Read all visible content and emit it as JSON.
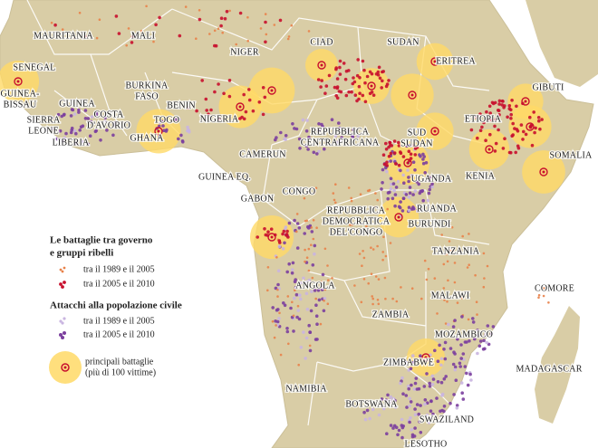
{
  "countries": [
    [
      "MAURITANIA"
    ],
    [
      "MALI"
    ],
    [
      "NIGER"
    ],
    [
      "CIAD"
    ],
    [
      "SUDAN"
    ],
    [
      "ERITREA"
    ],
    [
      "GIBUTI"
    ],
    [
      "SENEGAL"
    ],
    [
      "GUINEA-",
      "BISSAU"
    ],
    [
      "GUINEA"
    ],
    [
      "BURKINA",
      "FASO"
    ],
    [
      "COSTA",
      "D'AVORIO"
    ],
    [
      "BENIN"
    ],
    [
      "TOGO"
    ],
    [
      "SIERRA",
      "LEONE"
    ],
    [
      "LIBERIA"
    ],
    [
      "GHANA"
    ],
    [
      "NIGERIA"
    ],
    [
      "ETIOPIA"
    ],
    [
      "REPUBBLICA",
      "CENTRAFRICANA"
    ],
    [
      "SUD",
      "SUDAN"
    ],
    [
      "SOMALIA"
    ],
    [
      "CAMERUN"
    ],
    [
      "KENIA"
    ],
    [
      "GUINEA EQ."
    ],
    [
      "UGANDA"
    ],
    [
      "GABON"
    ],
    [
      "CONGO"
    ],
    [
      "RUANDA"
    ],
    [
      "REPUBBLICA",
      "DEMOCRATICA",
      "DEL'CONGO"
    ],
    [
      "BURUNDI"
    ],
    [
      "TANZANIA"
    ],
    [
      "ANGOLA"
    ],
    [
      "COMORE"
    ],
    [
      "MALAWI"
    ],
    [
      "ZAMBIA"
    ],
    [
      "MOZAMBICO"
    ],
    [
      "ZIMBABWE"
    ],
    [
      "MADAGASCAR"
    ],
    [
      "NAMIBIA"
    ],
    [
      "BOTSWANA"
    ],
    [
      "SWAZILAND"
    ],
    [
      "LESOTHO"
    ]
  ],
  "legend": {
    "battles": {
      "title": [
        "Le battaglie tra governo",
        "e gruppi ribelli"
      ],
      "items": [
        "tra il 1989 e il 2005",
        "tra il 2005 e il 2010"
      ]
    },
    "civilians": {
      "title": "Attacchi alla popolazione civile",
      "items": [
        "tra il 1989 e il 2005",
        "tra il 2005 e il 2010"
      ]
    },
    "major": [
      "principali battaglie",
      "(più di 100 vittime)"
    ]
  }
}
